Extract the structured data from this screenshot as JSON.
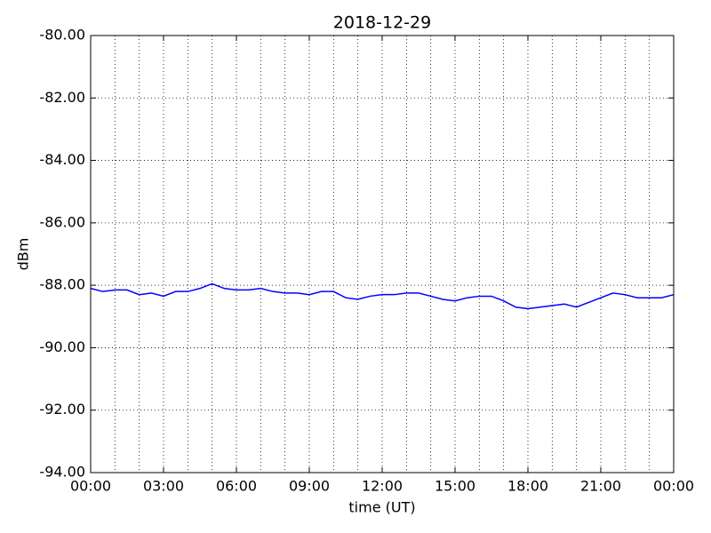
{
  "chart_data": {
    "type": "line",
    "title": "2018-12-29",
    "xlabel": "time (UT)",
    "ylabel": "dBm",
    "x": [
      0,
      0.5,
      1,
      1.5,
      2,
      2.5,
      3,
      3.5,
      4,
      4.5,
      5,
      5.5,
      6,
      6.5,
      7,
      7.5,
      8,
      8.5,
      9,
      9.5,
      10,
      10.5,
      11,
      11.5,
      12,
      12.5,
      13,
      13.5,
      14,
      14.5,
      15,
      15.5,
      16,
      16.5,
      17,
      17.5,
      18,
      18.5,
      19,
      19.5,
      20,
      20.5,
      21,
      21.5,
      22,
      22.5,
      23,
      23.5,
      24
    ],
    "series": [
      {
        "name": "dBm",
        "color": "#0000ff",
        "values": [
          -88.1,
          -88.2,
          -88.15,
          -88.15,
          -88.3,
          -88.25,
          -88.35,
          -88.2,
          -88.2,
          -88.1,
          -87.95,
          -88.1,
          -88.15,
          -88.15,
          -88.1,
          -88.2,
          -88.25,
          -88.25,
          -88.3,
          -88.2,
          -88.2,
          -88.4,
          -88.45,
          -88.35,
          -88.3,
          -88.3,
          -88.25,
          -88.25,
          -88.35,
          -88.45,
          -88.5,
          -88.4,
          -88.35,
          -88.35,
          -88.5,
          -88.7,
          -88.75,
          -88.7,
          -88.65,
          -88.6,
          -88.7,
          -88.55,
          -88.4,
          -88.25,
          -88.3,
          -88.4,
          -88.4,
          -88.4,
          -88.3
        ]
      }
    ],
    "xlim": [
      0,
      24
    ],
    "xticks": [
      {
        "value": 0,
        "label": "00:00"
      },
      {
        "value": 3,
        "label": "03:00"
      },
      {
        "value": 6,
        "label": "06:00"
      },
      {
        "value": 9,
        "label": "09:00"
      },
      {
        "value": 12,
        "label": "12:00"
      },
      {
        "value": 15,
        "label": "15:00"
      },
      {
        "value": 18,
        "label": "18:00"
      },
      {
        "value": 21,
        "label": "21:00"
      },
      {
        "value": 24,
        "label": "00:00"
      }
    ],
    "xminor_ticks": [
      1,
      2,
      4,
      5,
      7,
      8,
      10,
      11,
      13,
      14,
      16,
      17,
      19,
      20,
      22,
      23
    ],
    "ylim": [
      -94,
      -80
    ],
    "yticks": [
      {
        "value": -94,
        "label": "-94.00"
      },
      {
        "value": -92,
        "label": "-92.00"
      },
      {
        "value": -90,
        "label": "-90.00"
      },
      {
        "value": -88,
        "label": "-88.00"
      },
      {
        "value": -86,
        "label": "-86.00"
      },
      {
        "value": -84,
        "label": "-84.00"
      },
      {
        "value": -82,
        "label": "-82.00"
      },
      {
        "value": -80,
        "label": "-80.00"
      }
    ],
    "grid": true
  }
}
